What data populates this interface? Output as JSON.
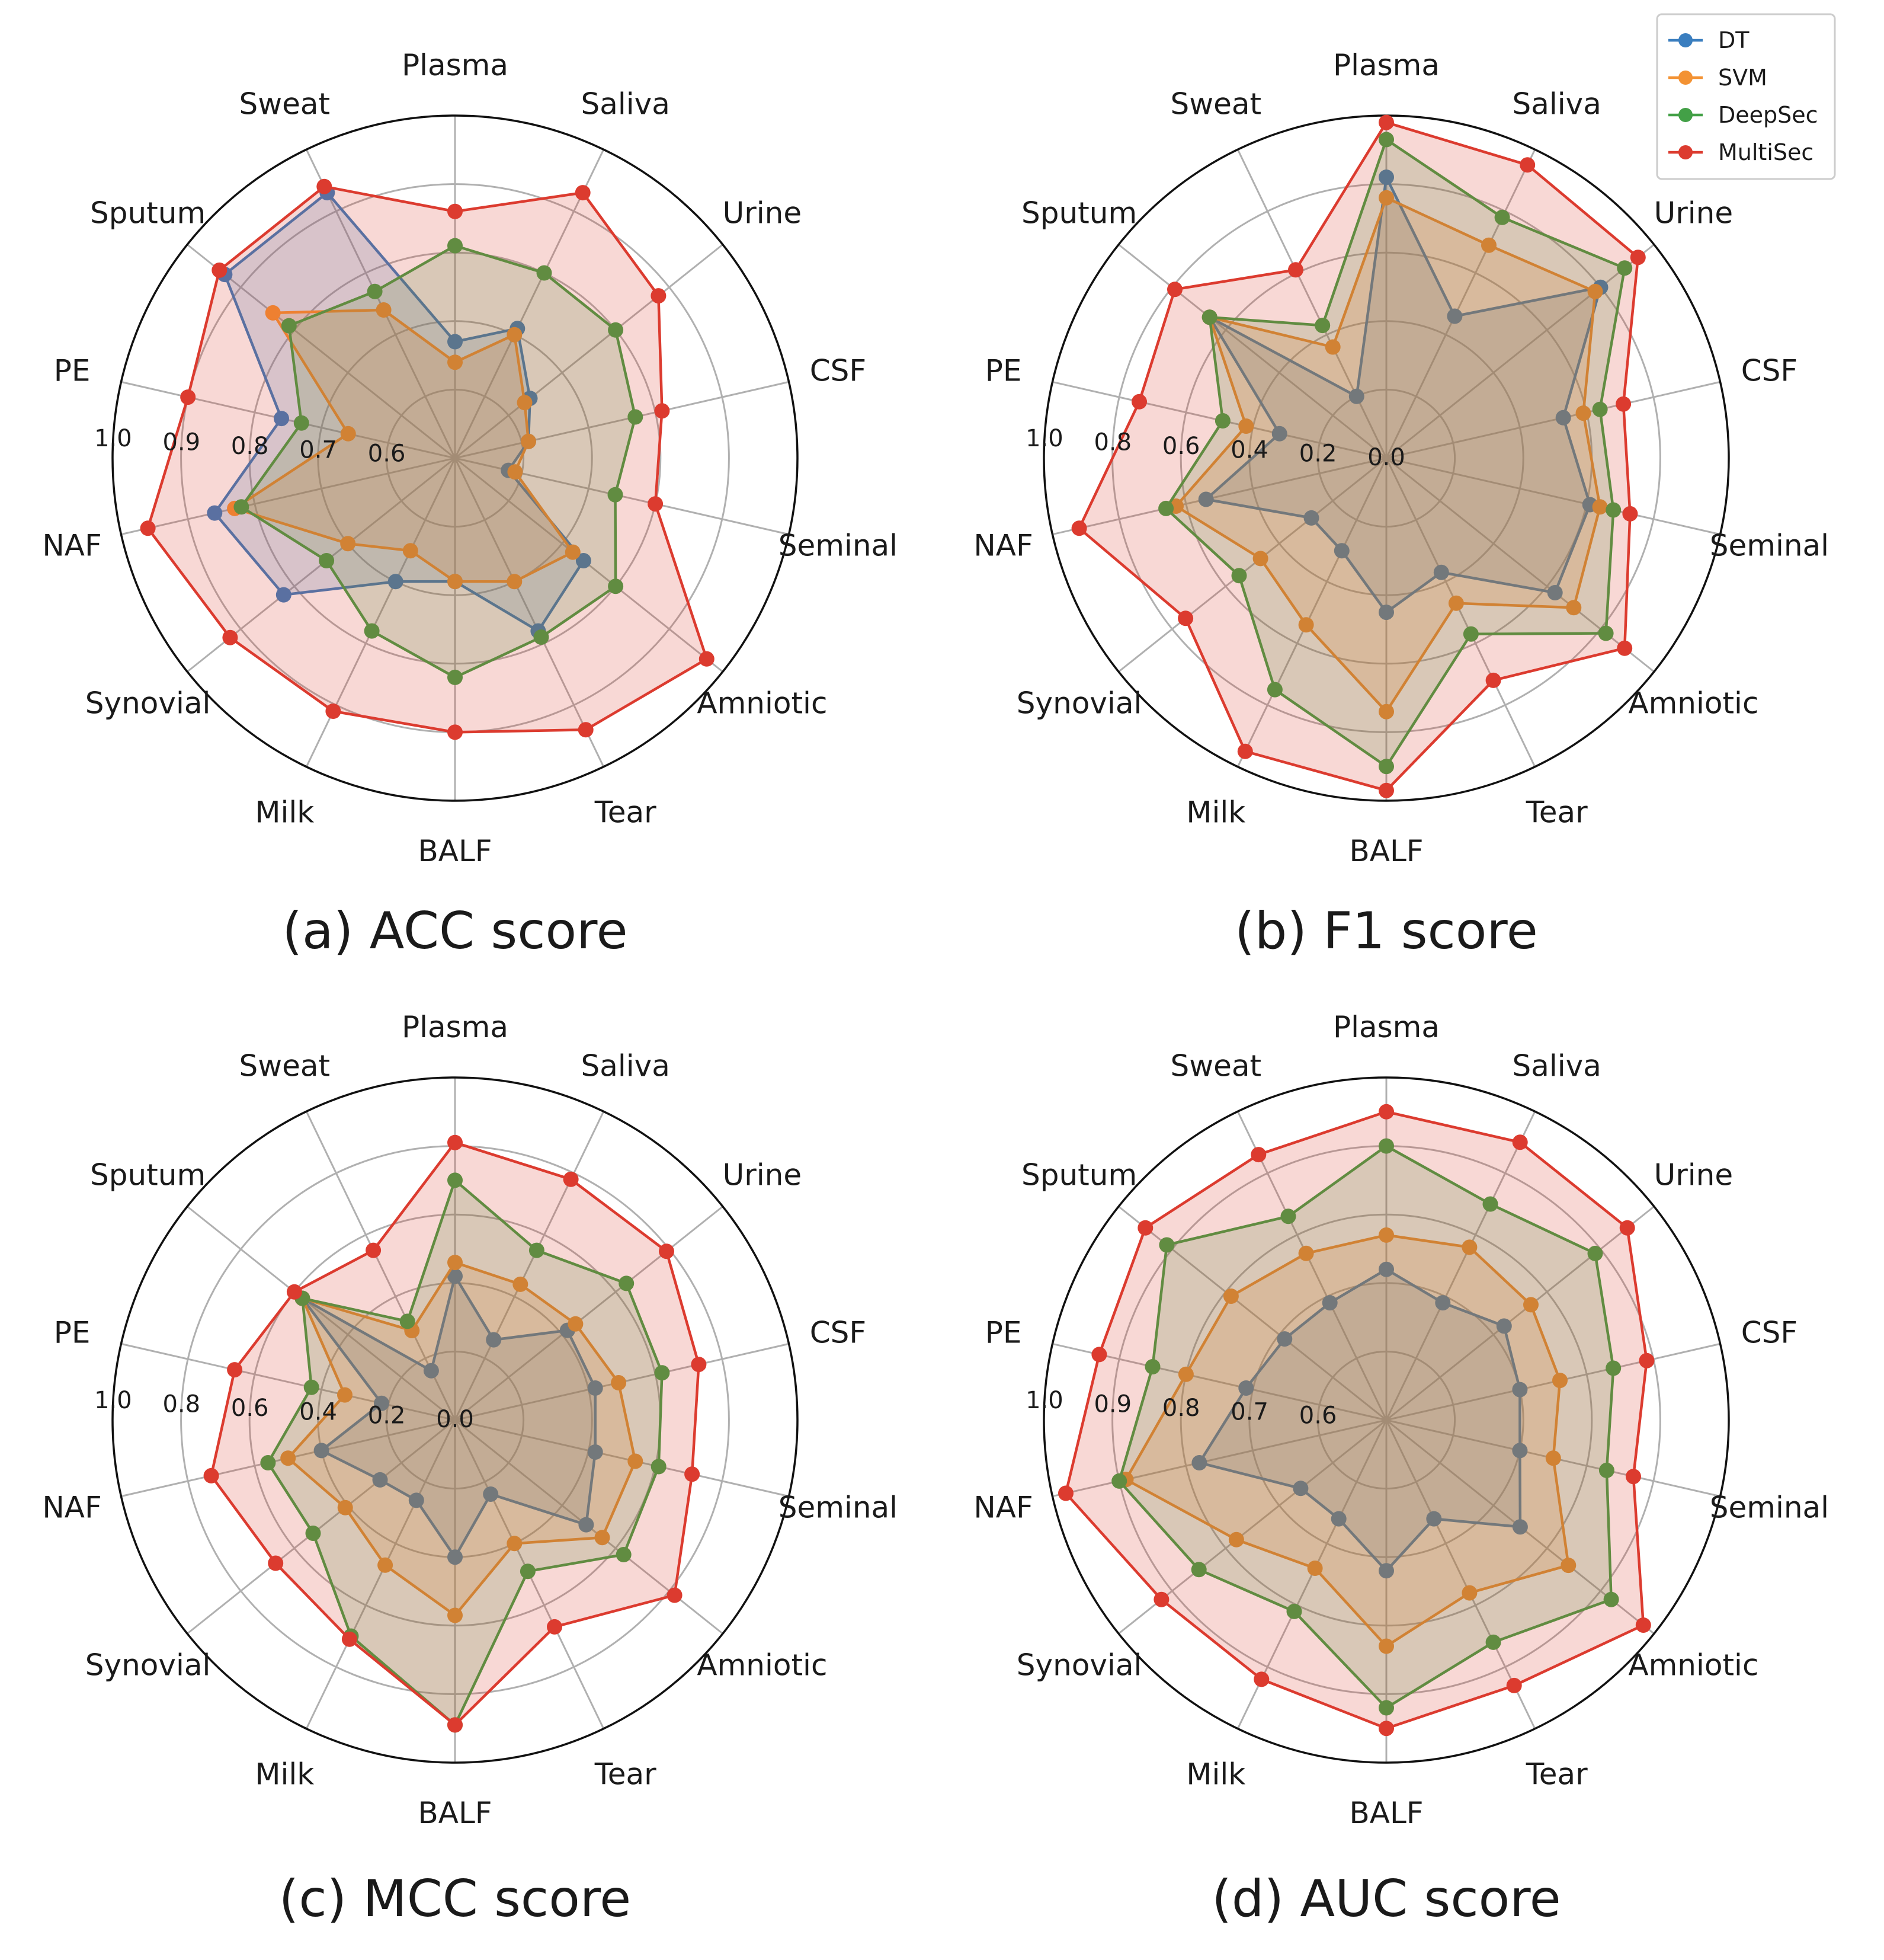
{
  "legend": [
    {
      "name": "DT",
      "color": "#3a7ebf"
    },
    {
      "name": "SVM",
      "color": "#f39233"
    },
    {
      "name": "DeepSec",
      "color": "#43a047"
    },
    {
      "name": "MultiSec",
      "color": "#dc3b2f"
    }
  ],
  "chart_data": [
    {
      "type": "radar",
      "title": "(a) ACC score",
      "categories": [
        "Plasma",
        "Saliva",
        "Urine",
        "CSF",
        "Seminal",
        "Amniotic",
        "Tear",
        "BALF",
        "Milk",
        "Synovial",
        "NAF",
        "PE",
        "Sputum",
        "Sweat"
      ],
      "rlim": [
        0.5,
        1.0
      ],
      "ticks": [
        0.6,
        0.7,
        0.8,
        0.9,
        1.0
      ],
      "tick_labels": [
        "0.6",
        "0.7",
        "0.8",
        "0.9",
        "1.0"
      ],
      "series": [
        {
          "name": "DT",
          "values": [
            0.67,
            0.71,
            0.64,
            0.61,
            0.58,
            0.74,
            0.78,
            0.68,
            0.7,
            0.82,
            0.86,
            0.76,
            0.93,
            0.93
          ]
        },
        {
          "name": "SVM",
          "values": [
            0.64,
            0.7,
            0.63,
            0.61,
            0.59,
            0.72,
            0.7,
            0.68,
            0.65,
            0.7,
            0.83,
            0.66,
            0.84,
            0.74
          ]
        },
        {
          "name": "DeepSec",
          "values": [
            0.81,
            0.8,
            0.8,
            0.77,
            0.74,
            0.8,
            0.79,
            0.82,
            0.78,
            0.74,
            0.82,
            0.73,
            0.81,
            0.77
          ]
        },
        {
          "name": "MultiSec",
          "values": [
            0.86,
            0.93,
            0.88,
            0.81,
            0.8,
            0.97,
            0.94,
            0.9,
            0.91,
            0.92,
            0.96,
            0.9,
            0.94,
            0.94
          ]
        }
      ]
    },
    {
      "type": "radar",
      "title": "(b) F1 score",
      "categories": [
        "Plasma",
        "Saliva",
        "Urine",
        "CSF",
        "Seminal",
        "Amniotic",
        "Tear",
        "BALF",
        "Milk",
        "Synovial",
        "NAF",
        "PE",
        "Sputum",
        "Sweat"
      ],
      "rlim": [
        0.0,
        1.0
      ],
      "ticks": [
        0.0,
        0.2,
        0.4,
        0.6,
        0.8,
        1.0
      ],
      "tick_labels": [
        "0.0",
        "0.2",
        "0.4",
        "0.6",
        "0.8",
        "1.0"
      ],
      "series": [
        {
          "name": "DT",
          "values": [
            0.82,
            0.46,
            0.8,
            0.53,
            0.61,
            0.63,
            0.37,
            0.45,
            0.3,
            0.28,
            0.54,
            0.32,
            0.66,
            0.2
          ]
        },
        {
          "name": "SVM",
          "values": [
            0.76,
            0.69,
            0.78,
            0.59,
            0.64,
            0.7,
            0.47,
            0.74,
            0.54,
            0.47,
            0.63,
            0.42,
            0.66,
            0.36
          ]
        },
        {
          "name": "DeepSec",
          "values": [
            0.93,
            0.78,
            0.89,
            0.64,
            0.68,
            0.82,
            0.57,
            0.9,
            0.75,
            0.55,
            0.66,
            0.49,
            0.66,
            0.43
          ]
        },
        {
          "name": "MultiSec",
          "values": [
            0.98,
            0.95,
            0.94,
            0.71,
            0.73,
            0.89,
            0.72,
            0.97,
            0.95,
            0.75,
            0.92,
            0.74,
            0.79,
            0.61
          ]
        }
      ]
    },
    {
      "type": "radar",
      "title": "(c) MCC score",
      "categories": [
        "Plasma",
        "Saliva",
        "Urine",
        "CSF",
        "Seminal",
        "Amniotic",
        "Tear",
        "BALF",
        "Milk",
        "Synovial",
        "NAF",
        "PE",
        "Sputum",
        "Sweat"
      ],
      "rlim": [
        0.0,
        1.0
      ],
      "ticks": [
        0.0,
        0.2,
        0.4,
        0.6,
        0.8,
        1.0
      ],
      "tick_labels": [
        "0.0",
        "0.2",
        "0.4",
        "0.6",
        "0.8",
        "1.0"
      ],
      "series": [
        {
          "name": "DT",
          "values": [
            0.42,
            0.26,
            0.42,
            0.42,
            0.42,
            0.49,
            0.24,
            0.4,
            0.26,
            0.28,
            0.4,
            0.22,
            0.57,
            0.16
          ]
        },
        {
          "name": "SVM",
          "values": [
            0.46,
            0.44,
            0.45,
            0.49,
            0.54,
            0.55,
            0.4,
            0.57,
            0.47,
            0.41,
            0.5,
            0.33,
            0.57,
            0.29
          ]
        },
        {
          "name": "DeepSec",
          "values": [
            0.7,
            0.55,
            0.64,
            0.62,
            0.61,
            0.63,
            0.49,
            0.89,
            0.7,
            0.53,
            0.56,
            0.43,
            0.57,
            0.32
          ]
        },
        {
          "name": "MultiSec",
          "values": [
            0.81,
            0.78,
            0.79,
            0.73,
            0.71,
            0.82,
            0.67,
            0.89,
            0.71,
            0.67,
            0.73,
            0.66,
            0.6,
            0.55
          ]
        }
      ]
    },
    {
      "type": "radar",
      "title": "(d) AUC score",
      "categories": [
        "Plasma",
        "Saliva",
        "Urine",
        "CSF",
        "Seminal",
        "Amniotic",
        "Tear",
        "BALF",
        "Milk",
        "Synovial",
        "NAF",
        "PE",
        "Sputum",
        "Sweat"
      ],
      "rlim": [
        0.5,
        1.0
      ],
      "ticks": [
        0.6,
        0.7,
        0.8,
        0.9,
        1.0
      ],
      "tick_labels": [
        "0.6",
        "0.7",
        "0.8",
        "0.9",
        "1.0"
      ],
      "series": [
        {
          "name": "DT",
          "values": [
            0.72,
            0.69,
            0.72,
            0.7,
            0.7,
            0.75,
            0.66,
            0.72,
            0.66,
            0.66,
            0.78,
            0.71,
            0.69,
            0.69
          ]
        },
        {
          "name": "SVM",
          "values": [
            0.77,
            0.78,
            0.77,
            0.76,
            0.75,
            0.84,
            0.78,
            0.83,
            0.74,
            0.78,
            0.89,
            0.8,
            0.79,
            0.77
          ]
        },
        {
          "name": "DeepSec",
          "values": [
            0.9,
            0.85,
            0.89,
            0.84,
            0.83,
            0.92,
            0.86,
            0.92,
            0.81,
            0.85,
            0.9,
            0.85,
            0.91,
            0.83
          ]
        },
        {
          "name": "MultiSec",
          "values": [
            0.95,
            0.95,
            0.95,
            0.89,
            0.87,
            0.98,
            0.93,
            0.95,
            0.92,
            0.92,
            0.98,
            0.93,
            0.95,
            0.93
          ]
        }
      ]
    }
  ]
}
